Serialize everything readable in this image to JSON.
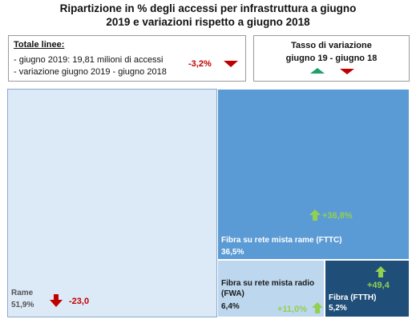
{
  "header": {
    "title_line1": "Ripartizione in % degli accessi per infrastruttura a giugno",
    "title_line2": "2019 e variazioni rispetto a giugno 2018"
  },
  "totale": {
    "title": "Totale linee:",
    "line1": "- giugno 2019: 19,81 milioni di accessi",
    "line2": "- variazione giugno 2019 - giugno 2018",
    "variation": "-3,2%",
    "variation_color": "#c00000"
  },
  "legend": {
    "title": "Tasso  di variazione",
    "subtitle": "giugno 19 - giugno 18",
    "up_icon": "arrow-up-green-icon",
    "down_icon": "arrow-down-red-icon"
  },
  "chart_data": {
    "type": "treemap",
    "title": "Ripartizione in % degli accessi per infrastruttura a giugno 2019 e variazioni rispetto a giugno 2018",
    "items": [
      {
        "label": "Rame",
        "share": "51,9%",
        "value": 51.9,
        "variation": "-23,0",
        "trend": "down",
        "color": "#dce9f7"
      },
      {
        "label": "Fibra su rete mista rame (FTTC)",
        "share": "36,5%",
        "value": 36.5,
        "variation": "+36,8%",
        "trend": "up",
        "color": "#5b9bd5"
      },
      {
        "label": "Fibra su rete mista radio (FWA)",
        "share": "6,4%",
        "value": 6.4,
        "variation": "+11,0%",
        "trend": "up",
        "color": "#bdd7ee"
      },
      {
        "label": "Fibra (FTTH)",
        "share": "5,2%",
        "value": 5.2,
        "variation": "+49,4",
        "trend": "up",
        "color": "#1f4e79"
      }
    ]
  }
}
